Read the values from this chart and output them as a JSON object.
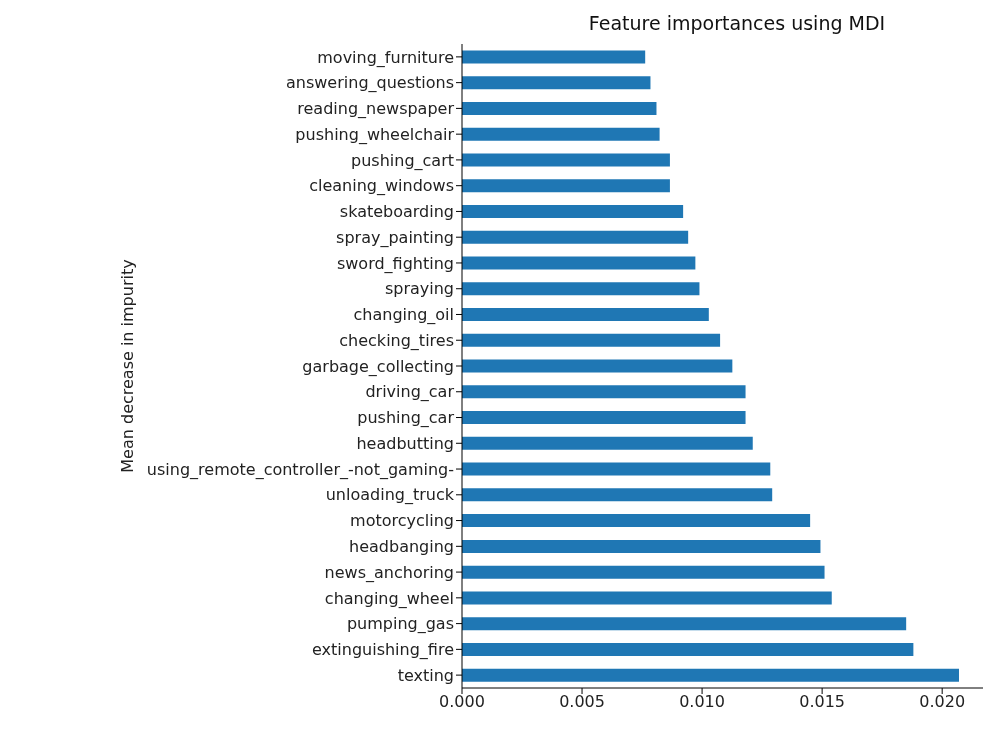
{
  "chart_data": {
    "type": "bar",
    "orientation": "horizontal",
    "title": "Feature importances using MDI",
    "ylabel": "Mean decrease in impurity",
    "categories": [
      "moving_furniture",
      "answering_questions",
      "reading_newspaper",
      "pushing_wheelchair",
      "pushing_cart",
      "cleaning_windows",
      "skateboarding",
      "spray_painting",
      "sword_fighting",
      "spraying",
      "changing_oil",
      "checking_tires",
      "garbage_collecting",
      "driving_car",
      "pushing_car",
      "headbutting",
      "using_remote_controller_-not_gaming-",
      "unloading_truck",
      "motorcycling",
      "headbanging",
      "news_anchoring",
      "changing_wheel",
      "pumping_gas",
      "extinguishing_fire",
      "texting"
    ],
    "values": [
      0.00763,
      0.00785,
      0.0081,
      0.00823,
      0.00866,
      0.00866,
      0.00921,
      0.00942,
      0.00972,
      0.00989,
      0.01028,
      0.01075,
      0.01126,
      0.01181,
      0.01181,
      0.01211,
      0.01284,
      0.01292,
      0.0145,
      0.01493,
      0.0151,
      0.0154,
      0.0185,
      0.0188,
      0.0207
    ],
    "color": "#1f77b4",
    "xlim": [
      0,
      0.0217
    ],
    "xticks": [
      {
        "value": 0,
        "label": "0.000"
      },
      {
        "value": 0.005,
        "label": "0.005"
      },
      {
        "value": 0.01,
        "label": "0.010"
      },
      {
        "value": 0.015,
        "label": "0.015"
      },
      {
        "value": 0.02,
        "label": "0.020"
      }
    ],
    "grid": false,
    "legend": false
  }
}
